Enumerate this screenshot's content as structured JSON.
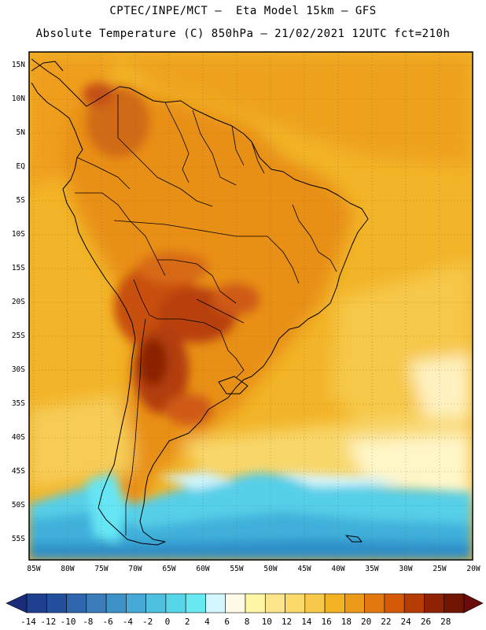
{
  "header": {
    "line1": "CPTEC/INPE/MCT –  Eta Model 15km – GFS",
    "line2": "Absolute Temperature (C) 850hPa – 21/02/2021 12UTC fct=210h"
  },
  "map": {
    "lat_labels": [
      "15N",
      "10N",
      "5N",
      "EQ",
      "5S",
      "10S",
      "15S",
      "20S",
      "25S",
      "30S",
      "35S",
      "40S",
      "45S",
      "50S",
      "55S"
    ],
    "lon_labels": [
      "85W",
      "80W",
      "75W",
      "70W",
      "65W",
      "60W",
      "55W",
      "50W",
      "45W",
      "40W",
      "35W",
      "30W",
      "25W",
      "20W"
    ]
  },
  "colorbar": {
    "labels": [
      "-14",
      "-12",
      "-10",
      "-8",
      "-6",
      "-4",
      "-2",
      "0",
      "2",
      "4",
      "6",
      "8",
      "10",
      "12",
      "14",
      "16",
      "18",
      "20",
      "22",
      "24",
      "26",
      "28"
    ],
    "colors": [
      "#1f3f8f",
      "#23509d",
      "#2f66ad",
      "#3b7cbb",
      "#3f92c8",
      "#47a9d6",
      "#4ec0e0",
      "#57d6ea",
      "#69eaf2",
      "#d4f6ff",
      "#fffbe6",
      "#fff6a6",
      "#fde68a",
      "#fbd96a",
      "#f7c84a",
      "#f2b222",
      "#ec9a1a",
      "#e37a10",
      "#d45a0a",
      "#b63c06",
      "#8f2204",
      "#701602"
    ],
    "left_arrow_color": "#1b2c7a",
    "right_arrow_color": "#6a0c0c"
  },
  "colors": {
    "hot": "#b23c10",
    "warm": "#e88f18",
    "mild": "#f2b222",
    "cool": "#fbe38a",
    "cold": "#4fc8e6",
    "deepcold": "#2f8fc8"
  }
}
